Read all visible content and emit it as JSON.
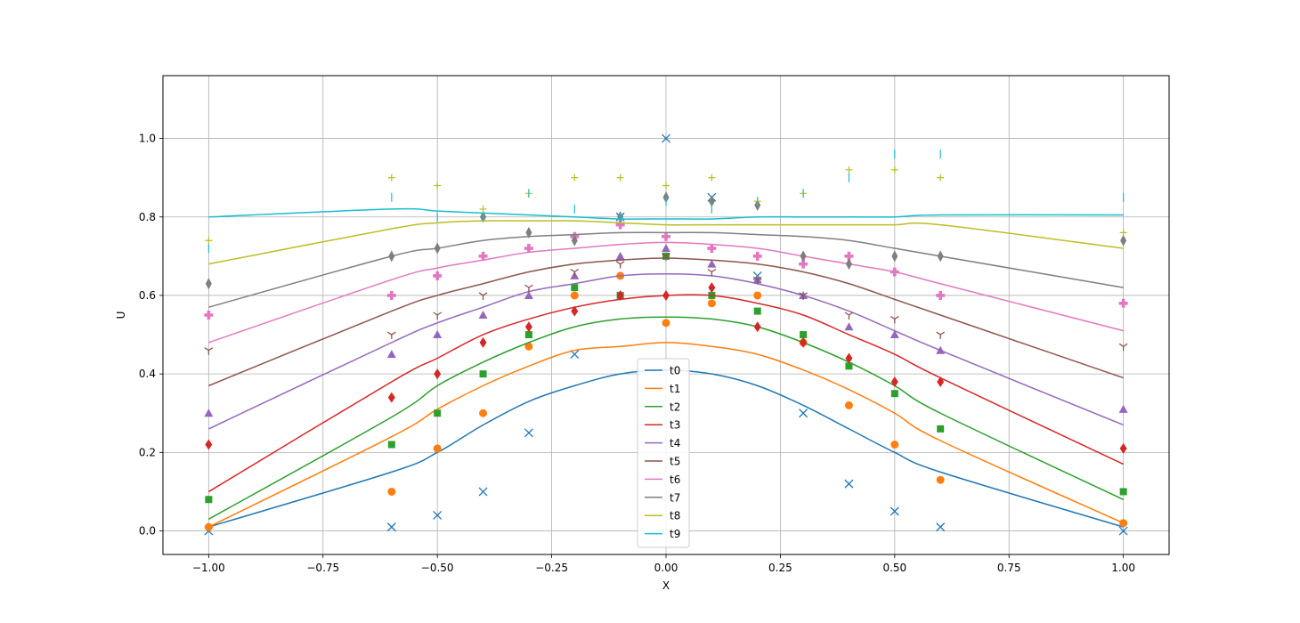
{
  "chart_data": {
    "type": "line",
    "title": "",
    "xlabel": "X",
    "ylabel": "U",
    "xlim": [
      -1.1,
      1.1
    ],
    "ylim": [
      -0.06,
      1.16
    ],
    "x_ticks": [
      -1.0,
      -0.75,
      -0.5,
      -0.25,
      0.0,
      0.25,
      0.5,
      0.75,
      1.0
    ],
    "x_tick_labels": [
      "−1.00",
      "−0.75",
      "−0.50",
      "−0.25",
      "0.00",
      "0.25",
      "0.50",
      "0.75",
      "1.00"
    ],
    "y_ticks": [
      0.0,
      0.2,
      0.4,
      0.6,
      0.8,
      1.0
    ],
    "y_tick_labels": [
      "0.0",
      "0.2",
      "0.4",
      "0.6",
      "0.8",
      "1.0"
    ],
    "grid": true,
    "legend": "lower-center",
    "series": [
      {
        "name": "t0",
        "color": "#1f77b4",
        "marker": "x",
        "x": [
          -1.0,
          -0.6,
          -0.5,
          -0.4,
          -0.3,
          -0.2,
          -0.1,
          0.0,
          0.1,
          0.2,
          0.3,
          0.4,
          0.5,
          0.6,
          1.0
        ],
        "line": [
          0.01,
          0.15,
          0.2,
          0.27,
          0.33,
          0.37,
          0.4,
          0.41,
          0.4,
          0.37,
          0.32,
          0.26,
          0.2,
          0.15,
          0.01
        ],
        "points": [
          0.0,
          0.01,
          0.04,
          0.1,
          0.25,
          0.45,
          0.8,
          1.0,
          0.85,
          0.65,
          0.3,
          0.12,
          0.05,
          0.01,
          0.0
        ]
      },
      {
        "name": "t1",
        "color": "#ff7f0e",
        "marker": "o",
        "x": [
          -1.0,
          -0.6,
          -0.5,
          -0.4,
          -0.3,
          -0.2,
          -0.1,
          0.0,
          0.1,
          0.2,
          0.3,
          0.4,
          0.5,
          0.6,
          1.0
        ],
        "line": [
          0.01,
          0.24,
          0.31,
          0.37,
          0.42,
          0.46,
          0.47,
          0.48,
          0.47,
          0.45,
          0.41,
          0.36,
          0.3,
          0.23,
          0.02
        ],
        "points": [
          0.01,
          0.1,
          0.21,
          0.3,
          0.47,
          0.6,
          0.65,
          0.53,
          0.58,
          0.6,
          0.48,
          0.32,
          0.22,
          0.13,
          0.02
        ]
      },
      {
        "name": "t2",
        "color": "#2ca02c",
        "marker": "s",
        "x": [
          -1.0,
          -0.6,
          -0.5,
          -0.4,
          -0.3,
          -0.2,
          -0.1,
          0.0,
          0.1,
          0.2,
          0.3,
          0.4,
          0.5,
          0.6,
          1.0
        ],
        "line": [
          0.03,
          0.29,
          0.37,
          0.43,
          0.48,
          0.52,
          0.54,
          0.545,
          0.54,
          0.52,
          0.48,
          0.43,
          0.37,
          0.3,
          0.08
        ],
        "points": [
          0.08,
          0.22,
          0.3,
          0.4,
          0.5,
          0.62,
          0.6,
          0.7,
          0.6,
          0.56,
          0.5,
          0.42,
          0.35,
          0.26,
          0.1
        ]
      },
      {
        "name": "t3",
        "color": "#d62728",
        "marker": "d",
        "x": [
          -1.0,
          -0.6,
          -0.5,
          -0.4,
          -0.3,
          -0.2,
          -0.1,
          0.0,
          0.1,
          0.2,
          0.3,
          0.4,
          0.5,
          0.6,
          1.0
        ],
        "line": [
          0.1,
          0.38,
          0.44,
          0.5,
          0.54,
          0.57,
          0.59,
          0.6,
          0.6,
          0.58,
          0.55,
          0.5,
          0.45,
          0.39,
          0.17
        ],
        "points": [
          0.22,
          0.34,
          0.4,
          0.48,
          0.52,
          0.56,
          0.6,
          0.6,
          0.62,
          0.52,
          0.48,
          0.44,
          0.38,
          0.38,
          0.21
        ]
      },
      {
        "name": "t4",
        "color": "#9467bd",
        "marker": "^",
        "x": [
          -1.0,
          -0.6,
          -0.5,
          -0.4,
          -0.3,
          -0.2,
          -0.1,
          0.0,
          0.1,
          0.2,
          0.3,
          0.4,
          0.5,
          0.6,
          1.0
        ],
        "line": [
          0.26,
          0.48,
          0.53,
          0.57,
          0.61,
          0.63,
          0.65,
          0.655,
          0.65,
          0.63,
          0.6,
          0.56,
          0.51,
          0.46,
          0.27
        ],
        "points": [
          0.3,
          0.45,
          0.5,
          0.55,
          0.6,
          0.65,
          0.7,
          0.72,
          0.68,
          0.64,
          0.6,
          0.52,
          0.5,
          0.46,
          0.31
        ]
      },
      {
        "name": "t5",
        "color": "#8c564b",
        "marker": "tri_down",
        "x": [
          -1.0,
          -0.6,
          -0.5,
          -0.4,
          -0.3,
          -0.2,
          -0.1,
          0.0,
          0.1,
          0.2,
          0.3,
          0.4,
          0.5,
          0.6,
          1.0
        ],
        "line": [
          0.37,
          0.56,
          0.6,
          0.63,
          0.66,
          0.68,
          0.69,
          0.695,
          0.69,
          0.68,
          0.66,
          0.63,
          0.59,
          0.55,
          0.39
        ],
        "points": [
          0.46,
          0.5,
          0.55,
          0.6,
          0.62,
          0.66,
          0.68,
          0.7,
          0.66,
          0.64,
          0.6,
          0.55,
          0.54,
          0.5,
          0.47
        ]
      },
      {
        "name": "t6",
        "color": "#e377c2",
        "marker": "P",
        "x": [
          -1.0,
          -0.6,
          -0.5,
          -0.4,
          -0.3,
          -0.2,
          -0.1,
          0.0,
          0.1,
          0.2,
          0.3,
          0.4,
          0.5,
          0.6,
          1.0
        ],
        "line": [
          0.48,
          0.64,
          0.67,
          0.69,
          0.71,
          0.72,
          0.73,
          0.735,
          0.73,
          0.72,
          0.7,
          0.68,
          0.66,
          0.63,
          0.51
        ],
        "points": [
          0.55,
          0.6,
          0.65,
          0.7,
          0.72,
          0.75,
          0.78,
          0.75,
          0.72,
          0.7,
          0.68,
          0.7,
          0.66,
          0.6,
          0.58
        ]
      },
      {
        "name": "t7",
        "color": "#7f7f7f",
        "marker": "thin_diamond",
        "x": [
          -1.0,
          -0.6,
          -0.5,
          -0.4,
          -0.3,
          -0.2,
          -0.1,
          0.0,
          0.1,
          0.2,
          0.3,
          0.4,
          0.5,
          0.6,
          1.0
        ],
        "line": [
          0.57,
          0.7,
          0.72,
          0.74,
          0.75,
          0.755,
          0.76,
          0.76,
          0.76,
          0.755,
          0.75,
          0.74,
          0.72,
          0.7,
          0.62
        ],
        "points": [
          0.63,
          0.7,
          0.72,
          0.8,
          0.76,
          0.74,
          0.8,
          0.85,
          0.84,
          0.83,
          0.7,
          0.68,
          0.7,
          0.7,
          0.74
        ]
      },
      {
        "name": "t8",
        "color": "#bcbd22",
        "marker": "+",
        "x": [
          -1.0,
          -0.6,
          -0.5,
          -0.4,
          -0.3,
          -0.2,
          -0.1,
          0.0,
          0.1,
          0.2,
          0.3,
          0.4,
          0.5,
          0.6,
          1.0
        ],
        "line": [
          0.68,
          0.77,
          0.785,
          0.79,
          0.79,
          0.79,
          0.785,
          0.78,
          0.78,
          0.78,
          0.78,
          0.78,
          0.78,
          0.78,
          0.72
        ],
        "points": [
          0.74,
          0.9,
          0.88,
          0.82,
          0.86,
          0.9,
          0.9,
          0.88,
          0.9,
          0.84,
          0.86,
          0.92,
          0.92,
          0.9,
          0.76
        ]
      },
      {
        "name": "t9",
        "color": "#17becf",
        "marker": "|",
        "x": [
          -1.0,
          -0.6,
          -0.5,
          -0.4,
          -0.3,
          -0.2,
          -0.1,
          0.0,
          0.1,
          0.2,
          0.3,
          0.4,
          0.5,
          0.6,
          1.0
        ],
        "line": [
          0.8,
          0.82,
          0.815,
          0.81,
          0.805,
          0.8,
          0.795,
          0.795,
          0.795,
          0.8,
          0.8,
          0.8,
          0.8,
          0.805,
          0.805
        ],
        "points": [
          0.72,
          0.85,
          0.8,
          0.8,
          0.86,
          0.82,
          0.8,
          0.84,
          0.82,
          0.84,
          0.86,
          0.9,
          0.96,
          0.96,
          0.85
        ]
      }
    ]
  }
}
